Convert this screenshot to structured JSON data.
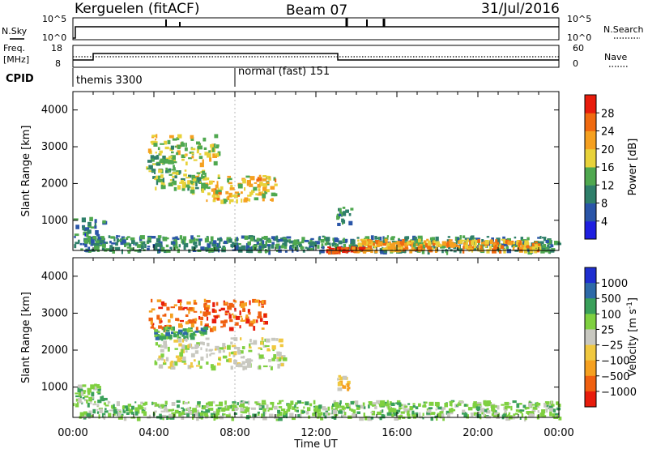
{
  "header": {
    "station": "Kerguelen (fitACF)",
    "beam": "Beam 07",
    "date": "31/Jul/2016"
  },
  "strip_labels": {
    "nsky": "N.Sky",
    "nsearch": "N.Search",
    "freq_line1": "Freq.",
    "freq_line2": "[MHz]",
    "nave": "Nave",
    "cpid": "CPID",
    "nsky_ticks": [
      "10^5",
      "10^0"
    ],
    "nsearch_ticks": [
      "10^5",
      "10^0"
    ],
    "freq_ticks": [
      "18",
      "8"
    ],
    "nave_ticks": [
      "60",
      "0"
    ]
  },
  "cpid_segments": [
    {
      "label": "themis 3300",
      "start_hour": 0
    },
    {
      "label": "normal (fast) 151",
      "start_hour": 8
    }
  ],
  "chart_data": [
    {
      "type": "heatmap",
      "name_on_chart": "",
      "xlabel": "",
      "ylabel": "Slant Range [km]",
      "xlim": [
        0,
        24
      ],
      "ylim": [
        180,
        4500
      ],
      "y_ticks": [
        1000,
        2000,
        3000,
        4000
      ],
      "colorbar": {
        "label": "Power [dB]",
        "tick_labels": [
          "4",
          "8",
          "12",
          "16",
          "20",
          "24",
          "28"
        ],
        "range": [
          0,
          30
        ],
        "colors": [
          "#1f1fe0",
          "#2a55a8",
          "#2f7f6a",
          "#4fa84f",
          "#e8d23a",
          "#f5a020",
          "#f06a10",
          "#e81c0c"
        ]
      },
      "regions": [
        {
          "t0": 3.7,
          "t1": 7.2,
          "r0": 2550,
          "r1": 3350,
          "level": 16
        },
        {
          "t0": 3.6,
          "t1": 5.0,
          "r0": 2200,
          "r1": 2800,
          "level": 12
        },
        {
          "t0": 5.6,
          "t1": 10.0,
          "r0": 1550,
          "r1": 2250,
          "level": 18
        },
        {
          "t0": 4.0,
          "t1": 6.5,
          "r0": 1900,
          "r1": 2400,
          "level": 14
        },
        {
          "t0": 13.0,
          "t1": 13.7,
          "r0": 900,
          "r1": 1400,
          "level": 10
        },
        {
          "t0": 0.0,
          "t1": 1.5,
          "r0": 350,
          "r1": 1100,
          "level": 8
        },
        {
          "t0": 0.0,
          "t1": 24.0,
          "r0": 180,
          "r1": 600,
          "level": 10
        },
        {
          "t0": 14.0,
          "t1": 23.0,
          "r0": 200,
          "r1": 500,
          "level": 20
        },
        {
          "t0": 12.5,
          "t1": 14.5,
          "r0": 180,
          "r1": 300,
          "level": 26
        }
      ]
    },
    {
      "type": "heatmap",
      "name_on_chart": "",
      "xlabel": "Time UT",
      "ylabel": "Slant Range [km]",
      "xlim": [
        0,
        24
      ],
      "ylim": [
        180,
        4500
      ],
      "x_ticks": [
        "00:00",
        "04:00",
        "08:00",
        "12:00",
        "16:00",
        "20:00",
        "00:00"
      ],
      "y_ticks": [
        1000,
        2000,
        3000,
        4000
      ],
      "colorbar": {
        "label": "Velocity [m s^-1]",
        "tick_labels": [
          "1000",
          "500",
          "100",
          "25",
          "−25",
          "−100",
          "−500",
          "−1000"
        ],
        "colors": [
          "#1f2fd0",
          "#2e6aa8",
          "#3aa05a",
          "#7fd040",
          "#c8c8c0",
          "#f0c840",
          "#f5a020",
          "#f06010",
          "#e81c0c"
        ]
      },
      "regions": [
        {
          "t0": 3.7,
          "t1": 9.5,
          "r0": 2600,
          "r1": 3400,
          "band": 7
        },
        {
          "t0": 4.0,
          "t1": 6.5,
          "r0": 2350,
          "r1": 2650,
          "band": 2
        },
        {
          "t0": 4.0,
          "t1": 10.5,
          "r0": 1550,
          "r1": 2350,
          "band": 4
        },
        {
          "t0": 13.0,
          "t1": 13.6,
          "r0": 950,
          "r1": 1350,
          "band": 5
        },
        {
          "t0": 0.0,
          "t1": 24.0,
          "r0": 180,
          "r1": 650,
          "band": 3
        },
        {
          "t0": 0.0,
          "t1": 1.5,
          "r0": 650,
          "r1": 1100,
          "band": 3
        }
      ]
    }
  ]
}
